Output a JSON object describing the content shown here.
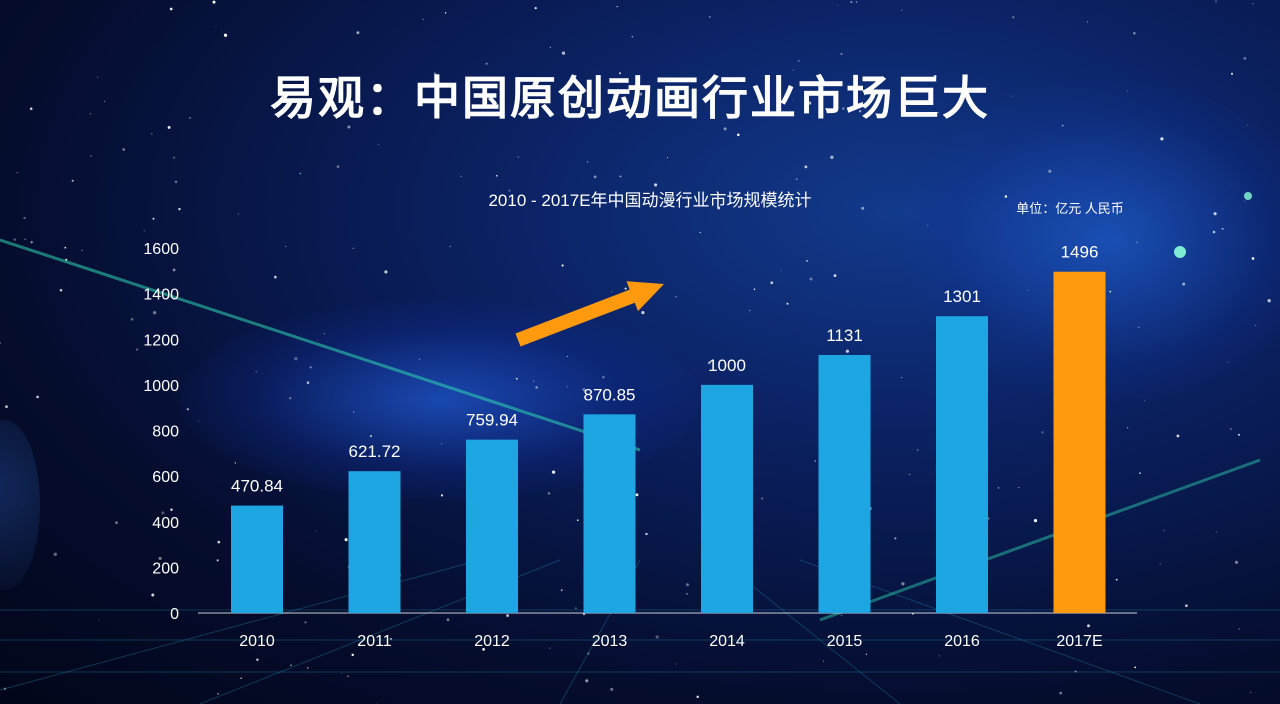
{
  "title": "易观：中国原创动画行业市场巨大",
  "unit": "单位：亿元 人民币",
  "chart_data": {
    "type": "bar",
    "title": "2010 - 2017E年中国动漫行业市场规模统计",
    "categories": [
      "2010",
      "2011",
      "2012",
      "2013",
      "2014",
      "2015",
      "2016",
      "2017E"
    ],
    "values": [
      470.84,
      621.72,
      759.94,
      870.85,
      1000,
      1131,
      1301,
      1496
    ],
    "value_labels": [
      "470.84",
      "621.72",
      "759.94",
      "870.85",
      "1000",
      "1131",
      "1301",
      "1496"
    ],
    "highlight_category": "2017E",
    "ylim": [
      0,
      1600
    ],
    "yticks": [
      "0",
      "200",
      "400",
      "600",
      "800",
      "1000",
      "1200",
      "1400",
      "1600"
    ],
    "grid": false,
    "colors": {
      "bar": "#1ea6e3",
      "highlight": "#ff9a0e",
      "arrow": "#ff9a0e",
      "text": "#ffffff"
    },
    "annotations": [
      "upward-trend-arrow"
    ]
  }
}
